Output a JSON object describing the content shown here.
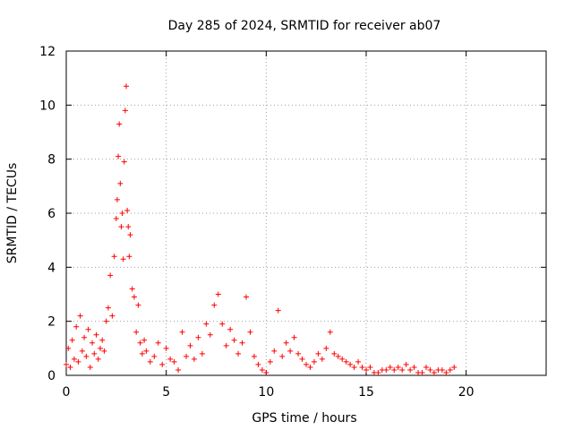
{
  "chart_data": {
    "type": "scatter",
    "title": "Day 285 of 2024, SRMTID for receiver ab07",
    "xlabel": "GPS time / hours",
    "ylabel": "SRMTID / TECUs",
    "xlim": [
      0,
      24
    ],
    "ylim": [
      0,
      12
    ],
    "x_ticks": [
      0,
      5,
      10,
      15,
      20
    ],
    "y_ticks": [
      0,
      2,
      4,
      6,
      8,
      10,
      12
    ],
    "grid": true,
    "marker": "+",
    "series": [
      {
        "name": "SRMTID",
        "color": "#ff0000",
        "x": [
          0.0,
          0.1,
          0.2,
          0.3,
          0.4,
          0.5,
          0.6,
          0.7,
          0.8,
          0.9,
          1.0,
          1.1,
          1.2,
          1.3,
          1.4,
          1.5,
          1.6,
          1.7,
          1.8,
          1.9,
          2.0,
          2.1,
          2.2,
          2.3,
          2.4,
          2.5,
          2.55,
          2.6,
          2.65,
          2.7,
          2.75,
          2.8,
          2.85,
          2.9,
          2.95,
          3.0,
          3.05,
          3.1,
          3.15,
          3.2,
          3.3,
          3.4,
          3.5,
          3.6,
          3.7,
          3.8,
          3.9,
          4.0,
          4.2,
          4.4,
          4.6,
          4.8,
          5.0,
          5.2,
          5.4,
          5.6,
          5.8,
          6.0,
          6.2,
          6.4,
          6.6,
          6.8,
          7.0,
          7.2,
          7.4,
          7.6,
          7.8,
          8.0,
          8.2,
          8.4,
          8.6,
          8.8,
          9.0,
          9.2,
          9.4,
          9.6,
          9.8,
          10.0,
          10.2,
          10.4,
          10.6,
          10.8,
          11.0,
          11.2,
          11.4,
          11.6,
          11.8,
          12.0,
          12.2,
          12.4,
          12.6,
          12.8,
          13.0,
          13.2,
          13.4,
          13.6,
          13.8,
          14.0,
          14.2,
          14.4,
          14.6,
          14.8,
          15.0,
          15.2,
          15.4,
          15.6,
          15.8,
          16.0,
          16.2,
          16.4,
          16.6,
          16.8,
          17.0,
          17.2,
          17.4,
          17.6,
          17.8,
          18.0,
          18.2,
          18.4,
          18.6,
          18.8,
          19.0,
          19.2,
          19.4
        ],
        "y": [
          0.4,
          1.0,
          0.3,
          1.3,
          0.6,
          1.8,
          0.5,
          2.2,
          0.9,
          1.4,
          0.7,
          1.7,
          0.3,
          1.2,
          0.8,
          1.5,
          0.6,
          1.0,
          1.3,
          0.9,
          2.0,
          2.5,
          3.7,
          2.2,
          4.4,
          5.8,
          6.5,
          8.1,
          9.3,
          7.1,
          5.5,
          6.0,
          4.3,
          7.9,
          9.8,
          10.7,
          6.1,
          5.5,
          4.4,
          5.2,
          3.2,
          2.9,
          1.6,
          2.6,
          1.2,
          0.8,
          1.3,
          0.9,
          0.5,
          0.7,
          1.2,
          0.4,
          1.0,
          0.6,
          0.5,
          0.2,
          1.6,
          0.7,
          1.1,
          0.6,
          1.4,
          0.8,
          1.9,
          1.5,
          2.6,
          3.0,
          1.9,
          1.1,
          1.7,
          1.3,
          0.8,
          1.2,
          2.9,
          1.6,
          0.7,
          0.4,
          0.2,
          0.1,
          0.5,
          0.9,
          2.4,
          0.7,
          1.2,
          0.9,
          1.4,
          0.8,
          0.6,
          0.4,
          0.3,
          0.5,
          0.8,
          0.6,
          1.0,
          1.6,
          0.8,
          0.7,
          0.6,
          0.5,
          0.4,
          0.3,
          0.5,
          0.3,
          0.2,
          0.3,
          0.1,
          0.1,
          0.2,
          0.2,
          0.3,
          0.2,
          0.3,
          0.2,
          0.4,
          0.2,
          0.3,
          0.1,
          0.1,
          0.3,
          0.2,
          0.1,
          0.2,
          0.2,
          0.1,
          0.2,
          0.3
        ]
      }
    ]
  }
}
